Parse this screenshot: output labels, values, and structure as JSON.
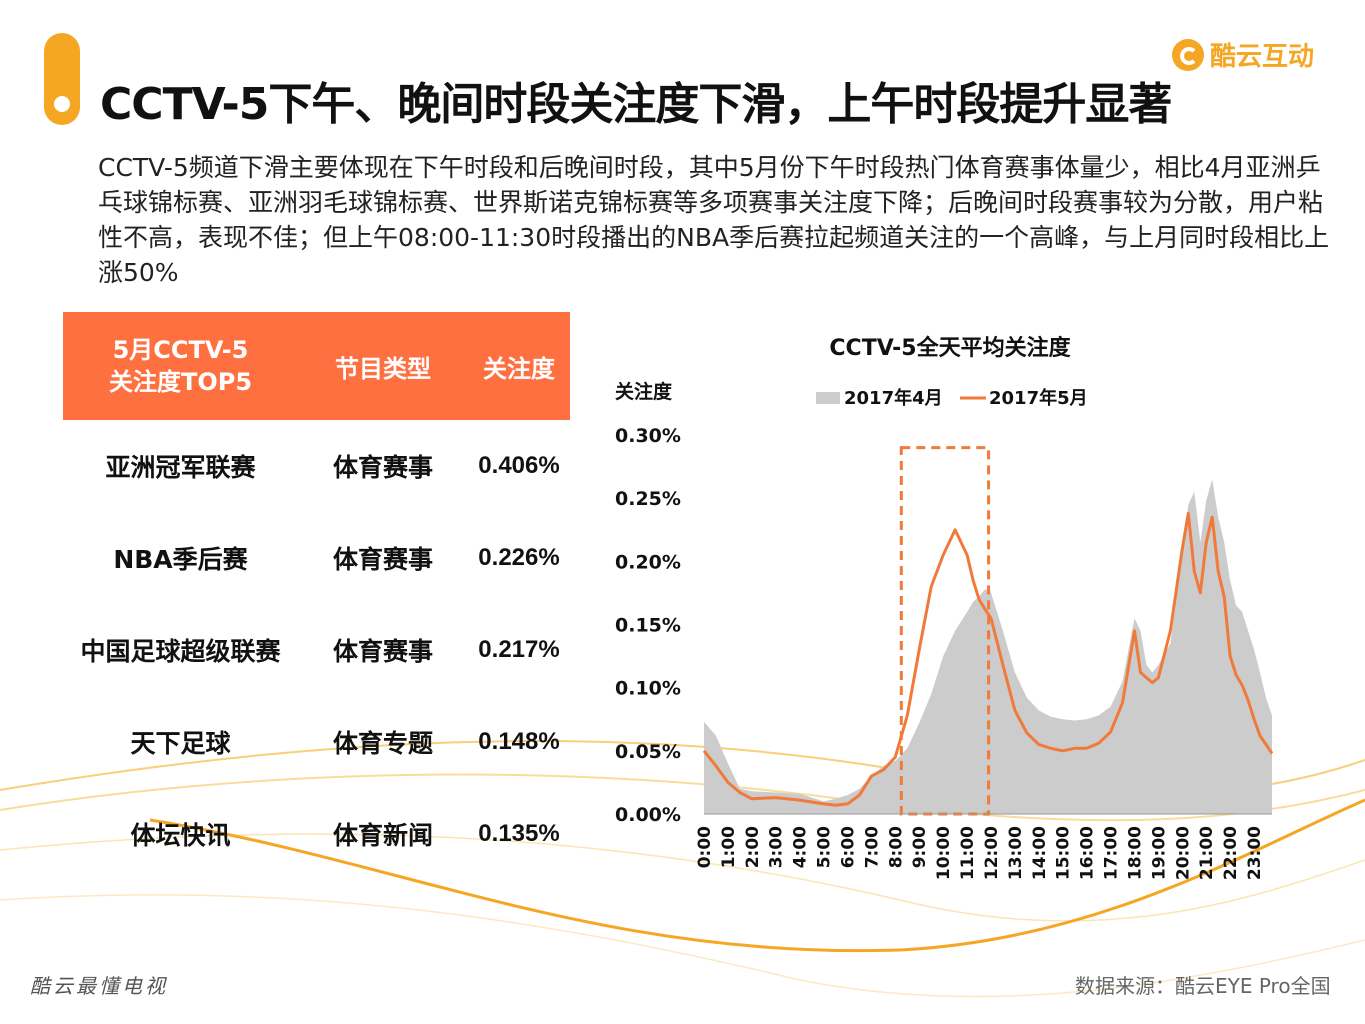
{
  "header": {
    "title": "CCTV-5下午、晚间时段关注度下滑，上午时段提升显著",
    "brand_name": "酷云互动",
    "brand_color": "#f5a623"
  },
  "description": "CCTV-5频道下滑主要体现在下午时段和后晚间时段，其中5月份下午时段热门体育赛事体量少，相比4月亚洲乒乓球锦标赛、亚洲羽毛球锦标赛、世界斯诺克锦标赛等多项赛事关注度下降；后晚间时段赛事较为分散，用户粘性不高，表现不佳；但上午08:00-11:30时段播出的NBA季后赛拉起频道关注的一个高峰，与上月同时段相比上涨50%",
  "table": {
    "header_color": "#ff7040",
    "headers": {
      "name_line1": "5月CCTV-5",
      "name_line2": "关注度TOP5",
      "type": "节目类型",
      "value": "关注度"
    },
    "rows": [
      {
        "name": "亚洲冠军联赛",
        "type": "体育赛事",
        "value": "0.406%"
      },
      {
        "name": "NBA季后赛",
        "type": "体育赛事",
        "value": "0.226%"
      },
      {
        "name": "中国足球超级联赛",
        "type": "体育赛事",
        "value": "0.217%"
      },
      {
        "name": "天下足球",
        "type": "体育专题",
        "value": "0.148%"
      },
      {
        "name": "体坛快讯",
        "type": "体育新闻",
        "value": "0.135%"
      }
    ]
  },
  "chart_data": {
    "type": "area",
    "title": "CCTV-5全天平均关注度",
    "ylabel": "关注度",
    "xlabel": "",
    "ylim": [
      0,
      0.3
    ],
    "y_ticks": [
      "0.00%",
      "0.05%",
      "0.10%",
      "0.15%",
      "0.20%",
      "0.25%",
      "0.30%"
    ],
    "x_ticks": [
      "0:00",
      "1:00",
      "2:00",
      "3:00",
      "4:00",
      "5:00",
      "6:00",
      "7:00",
      "8:00",
      "9:00",
      "10:00",
      "11:00",
      "12:00",
      "13:00",
      "14:00",
      "15:00",
      "16:00",
      "17:00",
      "18:00",
      "19:00",
      "20:00",
      "21:00",
      "22:00",
      "23:00"
    ],
    "x_range": [
      0,
      23.75
    ],
    "legend_position": "top",
    "highlight_range": [
      8.25,
      11.9
    ],
    "highlight_ymax": 0.29,
    "series": [
      {
        "name": "2017年4月",
        "style": "area",
        "color": "#cccccc",
        "x": [
          0,
          0.5,
          1,
          1.5,
          2,
          3,
          4,
          5,
          5.5,
          6,
          6.5,
          7,
          7.5,
          8,
          8.5,
          9,
          9.5,
          10,
          10.5,
          11,
          11.25,
          11.5,
          11.75,
          12,
          12.5,
          13,
          13.5,
          14,
          14.5,
          15,
          15.5,
          16,
          16.5,
          17,
          17.5,
          18,
          18.25,
          18.5,
          18.75,
          19,
          19.5,
          20,
          20.25,
          20.5,
          20.75,
          21,
          21.25,
          21.5,
          21.75,
          22,
          22.25,
          22.5,
          22.75,
          23,
          23.25,
          23.5,
          23.75
        ],
        "values": [
          0.073,
          0.062,
          0.04,
          0.02,
          0.018,
          0.017,
          0.016,
          0.01,
          0.012,
          0.015,
          0.02,
          0.03,
          0.038,
          0.042,
          0.052,
          0.072,
          0.095,
          0.125,
          0.145,
          0.16,
          0.168,
          0.172,
          0.178,
          0.175,
          0.145,
          0.112,
          0.092,
          0.082,
          0.077,
          0.075,
          0.074,
          0.075,
          0.078,
          0.085,
          0.105,
          0.155,
          0.145,
          0.118,
          0.112,
          0.118,
          0.135,
          0.205,
          0.245,
          0.255,
          0.215,
          0.248,
          0.265,
          0.235,
          0.215,
          0.185,
          0.165,
          0.16,
          0.145,
          0.13,
          0.112,
          0.092,
          0.078
        ]
      },
      {
        "name": "2017年5月",
        "style": "line",
        "color": "#f07a3a",
        "x": [
          0,
          0.5,
          1,
          1.5,
          2,
          3,
          4,
          5,
          5.5,
          6,
          6.5,
          7,
          7.5,
          8,
          8.5,
          9,
          9.5,
          10,
          10.5,
          11,
          11.25,
          11.5,
          11.75,
          12,
          12.5,
          13,
          13.5,
          14,
          14.5,
          15,
          15.5,
          16,
          16.5,
          17,
          17.5,
          18,
          18.25,
          18.5,
          18.75,
          19,
          19.5,
          20,
          20.25,
          20.5,
          20.75,
          21,
          21.25,
          21.5,
          21.75,
          22,
          22.25,
          22.5,
          22.75,
          23,
          23.25,
          23.5,
          23.75
        ],
        "values": [
          0.05,
          0.038,
          0.025,
          0.017,
          0.012,
          0.013,
          0.011,
          0.008,
          0.007,
          0.008,
          0.015,
          0.03,
          0.035,
          0.045,
          0.078,
          0.13,
          0.18,
          0.205,
          0.225,
          0.205,
          0.185,
          0.17,
          0.162,
          0.155,
          0.118,
          0.082,
          0.064,
          0.055,
          0.052,
          0.05,
          0.052,
          0.052,
          0.056,
          0.065,
          0.088,
          0.145,
          0.112,
          0.108,
          0.104,
          0.108,
          0.145,
          0.21,
          0.238,
          0.192,
          0.175,
          0.215,
          0.235,
          0.192,
          0.172,
          0.125,
          0.11,
          0.102,
          0.09,
          0.075,
          0.062,
          0.055,
          0.048
        ]
      }
    ]
  },
  "footer": {
    "left": "酷云最懂电视",
    "right": "数据来源：酷云EYE Pro全国"
  }
}
